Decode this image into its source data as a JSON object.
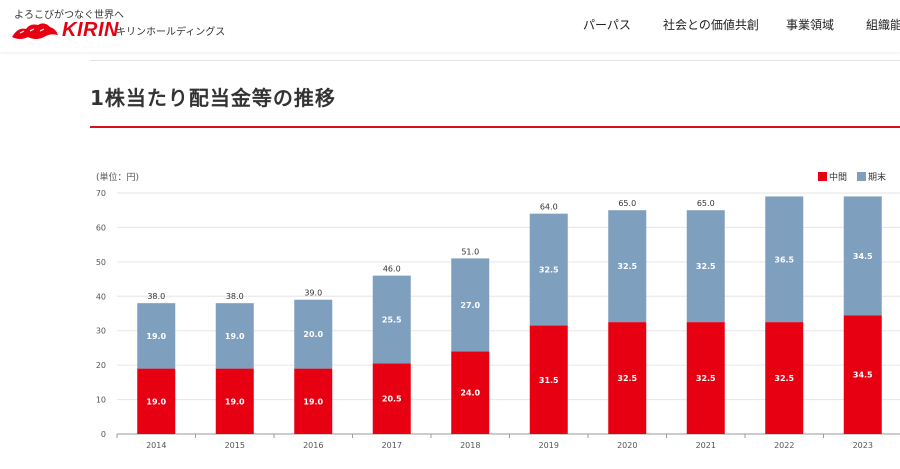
{
  "header": {
    "tagline": "よろこびがつなぐ世界へ",
    "brand": "KIRIN",
    "company": "キリンホールディングス",
    "nav": [
      "パーパス",
      "社会との価値共創",
      "事業領域",
      "組織能"
    ],
    "brand_color": "#e60012"
  },
  "page": {
    "title": "1株当たり配当金等の推移",
    "accent_color": "#d7101e"
  },
  "chart_data": {
    "type": "bar",
    "stacked": true,
    "unit_label": "(単位：円)",
    "categories": [
      "2014",
      "2015",
      "2016",
      "2017",
      "2018",
      "2019",
      "2020",
      "2021",
      "2022",
      "2023"
    ],
    "series": [
      {
        "name": "中間",
        "color": "#e60012",
        "values": [
          19.0,
          19.0,
          19.0,
          20.5,
          24.0,
          31.5,
          32.5,
          32.5,
          32.5,
          34.5
        ]
      },
      {
        "name": "期末",
        "color": "#7f9fbf",
        "values": [
          19.0,
          19.0,
          20.0,
          25.5,
          27.0,
          32.5,
          32.5,
          32.5,
          36.5,
          34.5
        ]
      }
    ],
    "totals": [
      "38.0",
      "38.0",
      "39.0",
      "46.0",
      "51.0",
      "64.0",
      "65.0",
      "65.0",
      "",
      ""
    ],
    "segment_labels": [
      [
        "19.0",
        "19.0",
        "19.0",
        "20.5",
        "24.0",
        "31.5",
        "32.5",
        "32.5",
        "32.5",
        "34.5"
      ],
      [
        "19.0",
        "19.0",
        "20.0",
        "25.5",
        "27.0",
        "32.5",
        "32.5",
        "32.5",
        "36.5",
        "34.5"
      ]
    ],
    "y_ticks": [
      "0",
      "10",
      "20",
      "30",
      "40",
      "50",
      "60",
      "70"
    ],
    "ylim": [
      0,
      70
    ],
    "legend_position": "top-right",
    "grid": true
  }
}
